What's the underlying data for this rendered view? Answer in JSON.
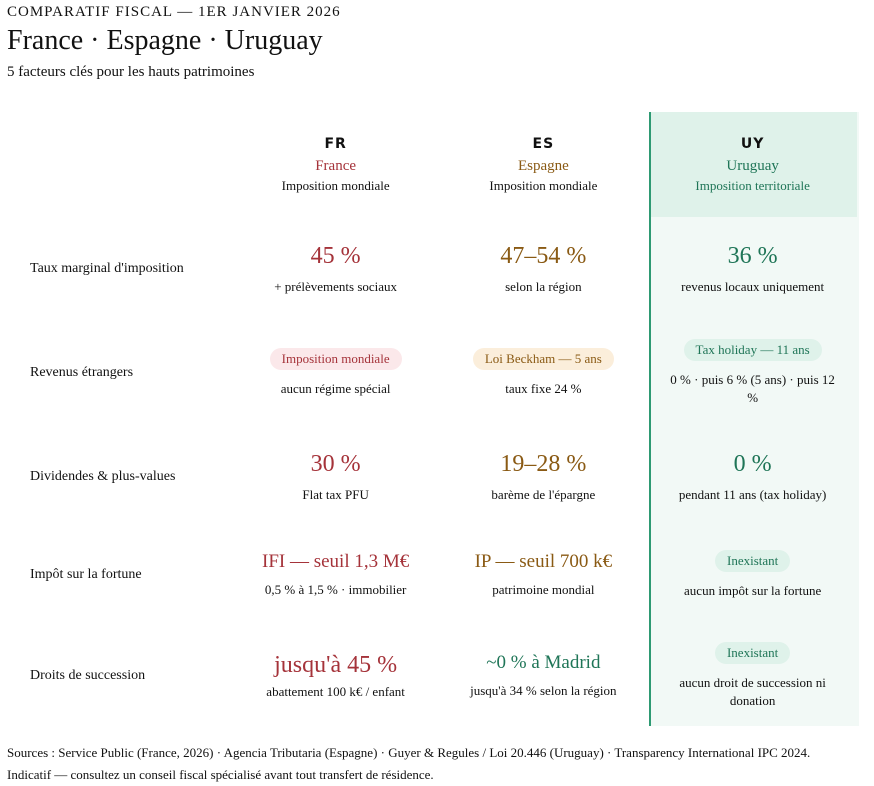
{
  "header": {
    "kicker": "COMPARATIF FISCAL — 1ER JANVIER 2026",
    "title": "France · Espagne · Uruguay",
    "subtitle": "5 facteurs clés pour les hauts patrimoines"
  },
  "columns": [
    {
      "code": "FR",
      "name": "France",
      "regime": "Imposition mondiale"
    },
    {
      "code": "ES",
      "name": "Espagne",
      "regime": "Imposition mondiale"
    },
    {
      "code": "UY",
      "name": "Uruguay",
      "regime": "Imposition territoriale"
    }
  ],
  "rows": [
    {
      "label": "Taux marginal d'imposition",
      "fr": {
        "value": "45 %",
        "note": "+ prélèvements sociaux"
      },
      "es": {
        "value": "47–54 %",
        "note": "selon la région"
      },
      "uy": {
        "value": "36 %",
        "note": "revenus locaux uniquement"
      }
    },
    {
      "label": "Revenus étrangers",
      "fr": {
        "value": "Imposition mondiale",
        "note": "aucun régime spécial"
      },
      "es": {
        "value": "Loi Beckham — 5 ans",
        "note": "taux fixe 24 %"
      },
      "uy": {
        "value": "Tax holiday — 11 ans",
        "note": "0 % · puis 6 % (5 ans) · puis 12 %"
      }
    },
    {
      "label": "Dividendes & plus-values",
      "fr": {
        "value": "30 %",
        "note": "Flat tax PFU"
      },
      "es": {
        "value": "19–28 %",
        "note": "barème de l'épargne"
      },
      "uy": {
        "value": "0 %",
        "note": "pendant 11 ans (tax holiday)"
      }
    },
    {
      "label": "Impôt sur la fortune",
      "fr": {
        "value": "IFI — seuil 1,3 M€",
        "note": "0,5 % à 1,5 % · immobilier"
      },
      "es": {
        "value": "IP — seuil 700 k€",
        "note": "patrimoine mondial"
      },
      "uy": {
        "value": "Inexistant",
        "note": "aucun impôt sur la fortune"
      }
    },
    {
      "label": "Droits de succession",
      "fr": {
        "value": "jusqu'à 45 %",
        "note": "abattement 100 k€ / enfant"
      },
      "es": {
        "value": "~0 % à Madrid",
        "note": "jusqu'à 34 % selon la région"
      },
      "uy": {
        "value": "Inexistant",
        "note": "aucun droit de succession ni donation"
      }
    }
  ],
  "footer": {
    "sources": "Sources : Service Public (France, 2026) · Agencia Tributaria (Espagne) · Guyer & Regules / Loi 20.446 (Uruguay) · Transparency International IPC 2024.",
    "disclaimer": "Indicatif — consultez un conseil fiscal spécialisé avant tout transfert de résidence."
  }
}
